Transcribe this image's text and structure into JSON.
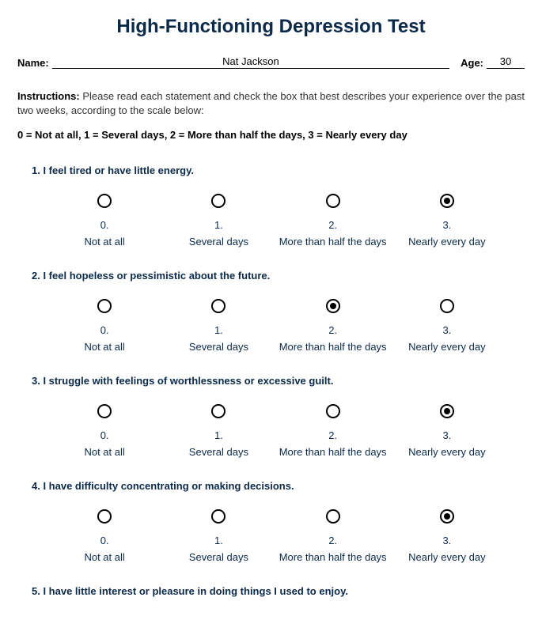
{
  "title": "High-Functioning Depression Test",
  "name_label": "Name:",
  "name_value": "Nat Jackson",
  "age_label": "Age:",
  "age_value": "30",
  "instructions_label": "Instructions:",
  "instructions_text": " Please read each statement and check the box that best describes your experience over the past two weeks, according to the scale below:",
  "scale_key": "0 = Not at all, 1 = Several days, 2 = More than half the days, 3 = Nearly every day",
  "option_scale": [
    {
      "num": "0.",
      "label": "Not at all"
    },
    {
      "num": "1.",
      "label": "Several days"
    },
    {
      "num": "2.",
      "label": "More than half the days"
    },
    {
      "num": "3.",
      "label": "Nearly every day"
    }
  ],
  "questions": [
    {
      "text": "1. I feel tired or have little energy.",
      "selected": 3
    },
    {
      "text": "2. I feel hopeless or pessimistic about the future.",
      "selected": 2
    },
    {
      "text": "3. I struggle with feelings of worthlessness or excessive guilt.",
      "selected": 3
    },
    {
      "text": "4. I have difficulty concentrating or making decisions.",
      "selected": 3
    },
    {
      "text": "5. I have little interest or pleasure in doing things I used to enjoy.",
      "selected": null
    }
  ],
  "colors": {
    "title_color": "#0b2a4a",
    "text_color": "#0b2a4a",
    "body_text": "#333333",
    "background": "#ffffff",
    "radio_border": "#000000"
  },
  "typography": {
    "title_fontsize": 24,
    "body_fontsize": 13,
    "font_family": "Arial"
  }
}
